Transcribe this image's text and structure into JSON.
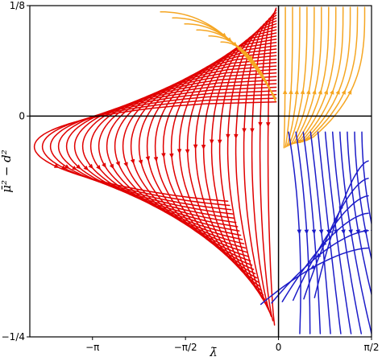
{
  "chart_data": {
    "type": "streamplot",
    "title": "",
    "xlabel": "λ̄",
    "ylabel": "μ̄² − d̄²",
    "xlim": [
      -4.2,
      1.5708
    ],
    "ylim": [
      -0.25,
      0.125
    ],
    "x_ticks": [
      {
        "value": -3.1416,
        "label": "−π"
      },
      {
        "value": -1.5708,
        "label": "−π/2"
      },
      {
        "value": 0,
        "label": "0"
      },
      {
        "value": 1.5708,
        "label": "π/2"
      }
    ],
    "y_ticks": [
      {
        "value": 0.125,
        "label": "1/8"
      },
      {
        "value": 0,
        "label": "0"
      },
      {
        "value": -0.25,
        "label": "−1/4"
      }
    ],
    "reference_lines": {
      "horizontal": 0,
      "vertical": 0
    },
    "grid": false,
    "legend": "none",
    "series": [
      {
        "color": "#e00000",
        "region": "λ̄ < 0"
      },
      {
        "color": "#f5a623",
        "region": "μ̄² − d̄² > 0"
      },
      {
        "color": "#1c1cc8",
        "region": "λ̄ > 0, μ̄² − d̄² < 0"
      }
    ]
  }
}
